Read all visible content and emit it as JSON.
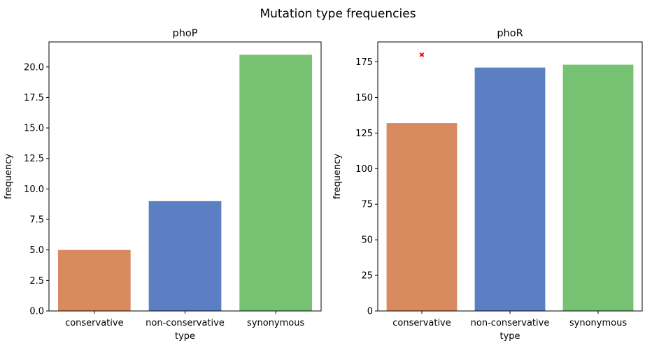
{
  "figure_title": "Mutation type frequencies",
  "chart_data": [
    {
      "type": "bar",
      "title": "phoP",
      "xlabel": "type",
      "ylabel": "frequency",
      "categories": [
        "conservative",
        "non-conservative",
        "synonymous"
      ],
      "values": [
        5,
        9,
        21
      ],
      "colors": [
        "#d98a5f",
        "#5b7fc2",
        "#76c172"
      ],
      "ylim": [
        0,
        22.05
      ],
      "yticks": [
        0,
        2.5,
        5,
        7.5,
        10,
        12.5,
        15,
        17.5,
        20
      ],
      "ytick_labels": [
        "0.0",
        "2.5",
        "5.0",
        "7.5",
        "10.0",
        "12.5",
        "15.0",
        "17.5",
        "20.0"
      ],
      "grid": false,
      "markers": []
    },
    {
      "type": "bar",
      "title": "phoR",
      "xlabel": "type",
      "ylabel": "frequency",
      "categories": [
        "conservative",
        "non-conservative",
        "synonymous"
      ],
      "values": [
        132,
        171,
        173
      ],
      "colors": [
        "#d98a5f",
        "#5b7fc2",
        "#76c172"
      ],
      "ylim": [
        0,
        189
      ],
      "yticks": [
        0,
        25,
        50,
        75,
        100,
        125,
        150,
        175
      ],
      "ytick_labels": [
        "0",
        "25",
        "50",
        "75",
        "100",
        "125",
        "150",
        "175"
      ],
      "grid": false,
      "markers": [
        {
          "category": "conservative",
          "y": 180,
          "symbol": "x",
          "color": "#ff0000"
        }
      ]
    }
  ]
}
